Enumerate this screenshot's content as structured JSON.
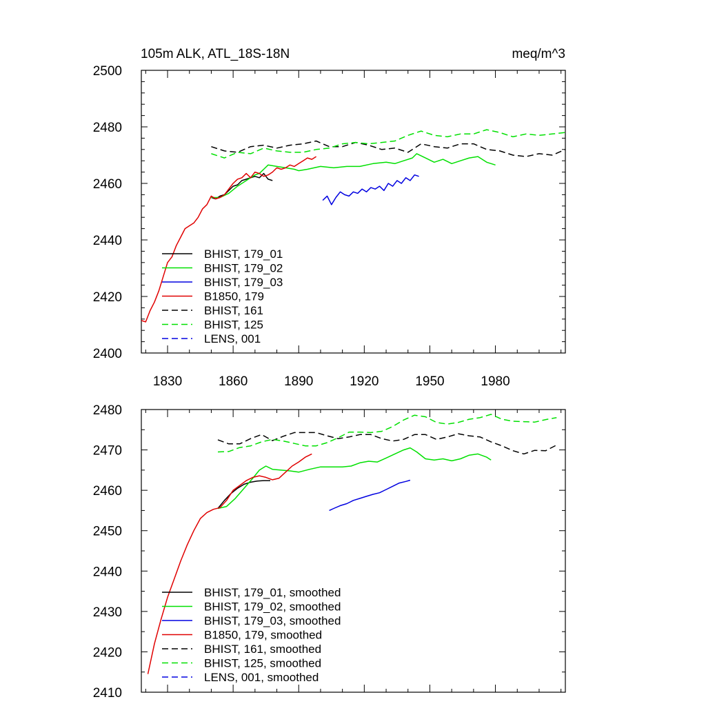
{
  "chart_data": [
    {
      "type": "line",
      "title": "105m ALK, ATL_18S-18N",
      "units": "meq/m^3",
      "xlim": [
        1818,
        2012
      ],
      "ylim": [
        2400,
        2500
      ],
      "xticks": [
        1830,
        1860,
        1890,
        1920,
        1950,
        1980
      ],
      "xtick_labels": [
        "1830",
        "1860",
        "1890",
        "1920",
        "1950",
        "1980"
      ],
      "yticks": [
        2400,
        2420,
        2440,
        2460,
        2480,
        2500
      ],
      "ytick_labels": [
        "2400",
        "2420",
        "2440",
        "2460",
        "2480",
        "2500"
      ],
      "legend_position": "lower-left",
      "series": [
        {
          "name": "BHIST, 179_01",
          "color": "#000000",
          "dash": "solid",
          "x": [
            1850,
            1852,
            1854,
            1856,
            1858,
            1860,
            1862,
            1864,
            1866,
            1868,
            1870,
            1872,
            1874,
            1876,
            1878
          ],
          "y": [
            2455,
            2454.5,
            2455.5,
            2456,
            2457.5,
            2459,
            2459.5,
            2461,
            2461.5,
            2462,
            2462.5,
            2462,
            2463.5,
            2461.5,
            2461
          ]
        },
        {
          "name": "BHIST, 179_02",
          "color": "#00e000",
          "dash": "solid",
          "x": [
            1850,
            1854,
            1858,
            1862,
            1866,
            1870,
            1872,
            1874,
            1876,
            1880,
            1884,
            1888,
            1890,
            1894,
            1900,
            1906,
            1912,
            1918,
            1924,
            1930,
            1934,
            1938,
            1942,
            1944,
            1948,
            1952,
            1956,
            1960,
            1964,
            1968,
            1972,
            1976,
            1980
          ],
          "y": [
            2455,
            2455,
            2456.5,
            2459,
            2461,
            2463,
            2463.5,
            2465,
            2466.5,
            2466,
            2465.5,
            2465,
            2464.5,
            2465,
            2466,
            2465.5,
            2466,
            2466,
            2467,
            2467.5,
            2467,
            2468,
            2469,
            2470.5,
            2469,
            2467.5,
            2468.5,
            2467,
            2468,
            2469,
            2469.5,
            2467.5,
            2466.5
          ]
        },
        {
          "name": "BHIST, 179_03",
          "color": "#0000e0",
          "dash": "solid",
          "x": [
            1901,
            1903,
            1905,
            1907,
            1909,
            1911,
            1913,
            1915,
            1917,
            1919,
            1921,
            1923,
            1925,
            1927,
            1929,
            1931,
            1933,
            1935,
            1937,
            1939,
            1941,
            1943,
            1945
          ],
          "y": [
            2454,
            2455.5,
            2452.5,
            2455,
            2457,
            2456,
            2455.5,
            2457,
            2456.5,
            2458,
            2457,
            2458.5,
            2458,
            2459,
            2457.5,
            2460,
            2459,
            2461,
            2460,
            2462,
            2461,
            2463,
            2462.5
          ]
        },
        {
          "name": "B1850, 179",
          "color": "#e00000",
          "dash": "solid",
          "x": [
            1818,
            1820,
            1822,
            1824,
            1826,
            1828,
            1830,
            1832,
            1834,
            1836,
            1838,
            1840,
            1842,
            1844,
            1846,
            1848,
            1850,
            1852,
            1854,
            1856,
            1858,
            1860,
            1862,
            1864,
            1866,
            1868,
            1870,
            1872,
            1874,
            1876,
            1878,
            1880,
            1882,
            1884,
            1886,
            1888,
            1890,
            1892,
            1894,
            1896,
            1898
          ],
          "y": [
            2411.5,
            2411,
            2415,
            2418,
            2422,
            2427,
            2432,
            2434,
            2438,
            2441,
            2444,
            2445,
            2446,
            2448,
            2451,
            2452.5,
            2455.5,
            2454.5,
            2455,
            2456,
            2458,
            2460,
            2461.5,
            2462,
            2463.5,
            2462,
            2464,
            2463.5,
            2462.5,
            2463,
            2464,
            2465.5,
            2465,
            2465.5,
            2466.5,
            2466,
            2467,
            2468,
            2469,
            2468.5,
            2469.5
          ]
        },
        {
          "name": "BHIST, 161",
          "color": "#000000",
          "dash": "dashed",
          "x": [
            1850,
            1856,
            1862,
            1868,
            1874,
            1880,
            1886,
            1892,
            1898,
            1904,
            1910,
            1916,
            1922,
            1928,
            1934,
            1940,
            1946,
            1952,
            1958,
            1964,
            1970,
            1976,
            1982,
            1988,
            1994,
            2000,
            2006,
            2012
          ],
          "y": [
            2473,
            2471.5,
            2471,
            2473,
            2473.5,
            2472.5,
            2473.5,
            2474,
            2475,
            2473,
            2473,
            2474.5,
            2473.5,
            2472,
            2472.5,
            2471,
            2474,
            2473,
            2472.5,
            2474,
            2474,
            2472,
            2471.5,
            2470,
            2469.5,
            2470.5,
            2470,
            2472
          ]
        },
        {
          "name": "BHIST, 125",
          "color": "#00e000",
          "dash": "dashed",
          "x": [
            1850,
            1856,
            1862,
            1868,
            1874,
            1880,
            1886,
            1892,
            1898,
            1904,
            1910,
            1916,
            1922,
            1928,
            1934,
            1940,
            1946,
            1952,
            1958,
            1964,
            1970,
            1976,
            1982,
            1988,
            1994,
            2000,
            2006,
            2012
          ],
          "y": [
            2470.5,
            2469,
            2471,
            2470.5,
            2472.5,
            2471.5,
            2471,
            2471,
            2472,
            2472.5,
            2474,
            2474.5,
            2474,
            2474.5,
            2475,
            2477,
            2478.5,
            2477,
            2476.5,
            2477.5,
            2477.5,
            2479,
            2478,
            2476.5,
            2477.5,
            2477,
            2477.5,
            2478
          ]
        },
        {
          "name": "LENS, 001",
          "color": "#0000e0",
          "dash": "dashed",
          "x": [],
          "y": []
        }
      ]
    },
    {
      "type": "line",
      "xlim": [
        1818,
        2012
      ],
      "ylim": [
        2410,
        2480
      ],
      "xticks": [
        1830,
        1860,
        1890,
        1920,
        1950,
        1980
      ],
      "xtick_labels": [],
      "yticks": [
        2410,
        2420,
        2430,
        2440,
        2450,
        2460,
        2470,
        2480
      ],
      "ytick_labels": [
        "2410",
        "2420",
        "2430",
        "2440",
        "2450",
        "2460",
        "2470",
        "2480"
      ],
      "legend_position": "lower-left",
      "series": [
        {
          "name": "BHIST, 179_01, smoothed",
          "color": "#000000",
          "dash": "solid",
          "x": [
            1853,
            1856,
            1859,
            1862,
            1865,
            1868,
            1871,
            1874,
            1877
          ],
          "y": [
            2455.5,
            2457.5,
            2459.2,
            2460.5,
            2461.5,
            2462,
            2462.3,
            2462.4,
            2462.4
          ]
        },
        {
          "name": "BHIST, 179_02, smoothed",
          "color": "#00e000",
          "dash": "solid",
          "x": [
            1853,
            1857,
            1861,
            1865,
            1869,
            1872,
            1875,
            1878,
            1882,
            1886,
            1890,
            1895,
            1900,
            1905,
            1910,
            1914,
            1918,
            1922,
            1926,
            1930,
            1934,
            1938,
            1941,
            1944,
            1948,
            1952,
            1956,
            1960,
            1964,
            1968,
            1972,
            1976,
            1978
          ],
          "y": [
            2455.5,
            2456,
            2458,
            2460.5,
            2463,
            2465,
            2466,
            2465.2,
            2465,
            2464.8,
            2464.5,
            2465.2,
            2465.8,
            2465.8,
            2465.8,
            2466,
            2466.8,
            2467.2,
            2467,
            2468,
            2469,
            2470,
            2470.5,
            2469.5,
            2467.8,
            2467.5,
            2467.8,
            2467.3,
            2467.8,
            2468.7,
            2469,
            2468.2,
            2467.5
          ]
        },
        {
          "name": "BHIST, 179_03, smoothed",
          "color": "#0000e0",
          "dash": "solid",
          "x": [
            1904,
            1906,
            1909,
            1912,
            1915,
            1918,
            1921,
            1924,
            1927,
            1930,
            1933,
            1936,
            1939,
            1941
          ],
          "y": [
            2455,
            2455.5,
            2456.2,
            2456.7,
            2457.5,
            2458,
            2458.5,
            2459,
            2459.4,
            2460.2,
            2461,
            2461.8,
            2462.2,
            2462.5
          ]
        },
        {
          "name": "B1850, 179, smoothed",
          "color": "#e00000",
          "dash": "solid",
          "x": [
            1821,
            1824,
            1827,
            1830,
            1833,
            1836,
            1839,
            1842,
            1845,
            1848,
            1851,
            1854,
            1857,
            1860,
            1863,
            1866,
            1869,
            1872,
            1875,
            1878,
            1881,
            1884,
            1887,
            1890,
            1893,
            1896
          ],
          "y": [
            2414.5,
            2422,
            2428,
            2433.5,
            2438,
            2442.5,
            2446.5,
            2450,
            2453,
            2454.5,
            2455.3,
            2455.7,
            2457.5,
            2460,
            2461.2,
            2462.4,
            2463.2,
            2463.6,
            2463.2,
            2462.6,
            2463,
            2464.5,
            2466,
            2467,
            2468.2,
            2469
          ]
        },
        {
          "name": "BHIST, 161, smoothed",
          "color": "#000000",
          "dash": "dashed",
          "x": [
            1853,
            1858,
            1863,
            1868,
            1873,
            1878,
            1883,
            1888,
            1893,
            1898,
            1903,
            1908,
            1913,
            1918,
            1923,
            1928,
            1933,
            1938,
            1943,
            1948,
            1953,
            1958,
            1963,
            1968,
            1973,
            1978,
            1983,
            1988,
            1993,
            1998,
            2003,
            2008
          ],
          "y": [
            2472.5,
            2471.5,
            2471.5,
            2472.8,
            2473.8,
            2472.3,
            2473.4,
            2474.3,
            2474.3,
            2474.3,
            2473.5,
            2472.8,
            2473.2,
            2473.8,
            2473.8,
            2472.8,
            2472.2,
            2472.6,
            2473.8,
            2473.8,
            2472.6,
            2473.2,
            2474,
            2473.5,
            2473.2,
            2472,
            2471,
            2469.8,
            2469,
            2469.9,
            2469.8,
            2471.2
          ]
        },
        {
          "name": "BHIST, 125, smoothed",
          "color": "#00e000",
          "dash": "dashed",
          "x": [
            1853,
            1858,
            1863,
            1868,
            1873,
            1878,
            1883,
            1888,
            1893,
            1898,
            1903,
            1908,
            1913,
            1918,
            1923,
            1928,
            1933,
            1938,
            1943,
            1948,
            1953,
            1958,
            1963,
            1968,
            1973,
            1978,
            1983,
            1988,
            1993,
            1998,
            2003,
            2008
          ],
          "y": [
            2469.5,
            2469.6,
            2470.6,
            2471,
            2472,
            2472.6,
            2472.2,
            2471.6,
            2471,
            2471,
            2471.8,
            2473,
            2474.4,
            2474.4,
            2474.3,
            2474.6,
            2475.8,
            2477.4,
            2478.6,
            2478.2,
            2476.8,
            2476.4,
            2476.8,
            2477.6,
            2478,
            2478.8,
            2477.6,
            2477.1,
            2477,
            2476.9,
            2477.5,
            2478
          ]
        },
        {
          "name": "LENS, 001, smoothed",
          "color": "#0000e0",
          "dash": "dashed",
          "x": [],
          "y": []
        }
      ]
    }
  ]
}
